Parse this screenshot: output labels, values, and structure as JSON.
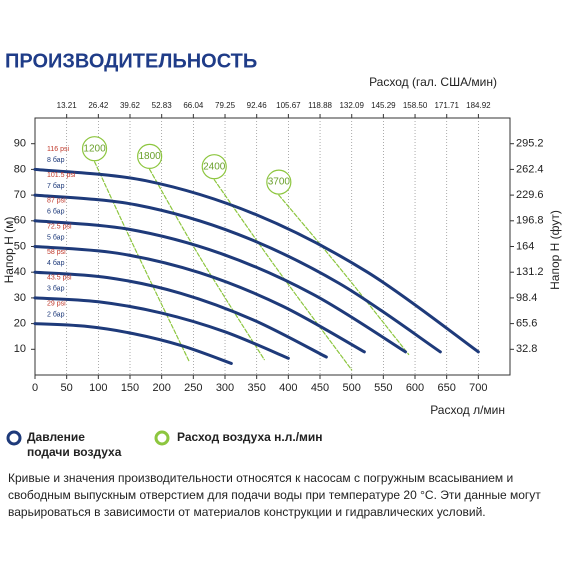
{
  "chart_data": {
    "type": "line",
    "title": "ПРОИЗВОДИТЕЛЬНОСТЬ",
    "x_label": "Расход л/мин",
    "x2_label": "Расход (гал. США/мин)",
    "y_label": "Напор H (м)",
    "y2_label": "Напор H (фут)",
    "xlim": [
      0,
      750
    ],
    "xticks": [
      0,
      50,
      100,
      150,
      200,
      250,
      300,
      350,
      400,
      450,
      500,
      550,
      600,
      650,
      700
    ],
    "x2lim": [
      0,
      198.1
    ],
    "x2ticks": [
      13.21,
      26.42,
      39.62,
      52.83,
      66.04,
      79.25,
      92.46,
      105.67,
      118.88,
      132.09,
      145.29,
      {
        "value": 158.5,
        "label": "158.50"
      },
      171.71,
      184.92
    ],
    "ylim": [
      0,
      100
    ],
    "yticks": [
      10,
      20,
      30,
      40,
      50,
      60,
      70,
      80,
      90
    ],
    "y2lim": [
      0,
      328
    ],
    "y2ticks": [
      32.8,
      65.6,
      98.4,
      131.2,
      164,
      196.8,
      229.6,
      262.4,
      295.2
    ],
    "grid": true,
    "series": [
      {
        "name": "8 бар",
        "label": "116 psi",
        "color": "#1e3a7a",
        "x": [
          0,
          175,
          350,
          525,
          700
        ],
        "values": [
          80,
          75.6,
          62.3,
          40,
          9
        ]
      },
      {
        "name": "7 бар",
        "label": "101.5 psi",
        "color": "#1e3a7a",
        "x": [
          0,
          160,
          320,
          480,
          640
        ],
        "values": [
          70,
          66.2,
          54.8,
          35.7,
          9
        ]
      },
      {
        "name": "6 бар",
        "label": "87 psi",
        "color": "#1e3a7a",
        "x": [
          0,
          146,
          293,
          439,
          585
        ],
        "values": [
          60,
          56.8,
          47.3,
          31.4,
          9
        ]
      },
      {
        "name": "5 бар",
        "label": "72.5 psi",
        "color": "#1e3a7a",
        "x": [
          0,
          130,
          260,
          390,
          520
        ],
        "values": [
          50,
          47.4,
          39.8,
          26.9,
          9
        ]
      },
      {
        "name": "4 бар",
        "label": "58 psi",
        "color": "#1e3a7a",
        "x": [
          0,
          115,
          230,
          345,
          460
        ],
        "values": [
          40,
          37.9,
          31.8,
          21.4,
          7
        ]
      },
      {
        "name": "3 бар",
        "label": "43.5 psi",
        "color": "#1e3a7a",
        "x": [
          0,
          100,
          200,
          300,
          400
        ],
        "values": [
          30,
          28.5,
          24.1,
          16.8,
          6.5
        ]
      },
      {
        "name": "2 бар",
        "label": "29 psi",
        "color": "#1e3a7a",
        "x": [
          0,
          78,
          155,
          233,
          310
        ],
        "values": [
          20,
          19,
          16.1,
          11.3,
          4.5
        ]
      }
    ],
    "air_series": [
      {
        "name": "1200",
        "color": "#8dc63f",
        "x": [
          94,
          160,
          244
        ],
        "values": [
          83,
          48,
          5
        ]
      },
      {
        "name": "1800",
        "color": "#8dc63f",
        "x": [
          181,
          260,
          362
        ],
        "values": [
          80,
          46,
          6
        ]
      },
      {
        "name": "2400",
        "color": "#8dc63f",
        "x": [
          283,
          380,
          500
        ],
        "values": [
          76,
          42,
          2
        ]
      },
      {
        "name": "3700",
        "color": "#8dc63f",
        "x": [
          385,
          480,
          590
        ],
        "values": [
          70,
          42,
          8
        ]
      }
    ],
    "legend": {
      "pressure": "Давление\nподачи воздуха",
      "air": "Расход воздуха н.л./мин"
    },
    "note": "Кривые и значения производительности относятся к насосам с погружным всасыванием и свободным выпускным отверстием для подачи воды при температуре 20 °C. Эти данные могут варьироваться в зависимости от материалов конструкции и гидравлических условий."
  }
}
